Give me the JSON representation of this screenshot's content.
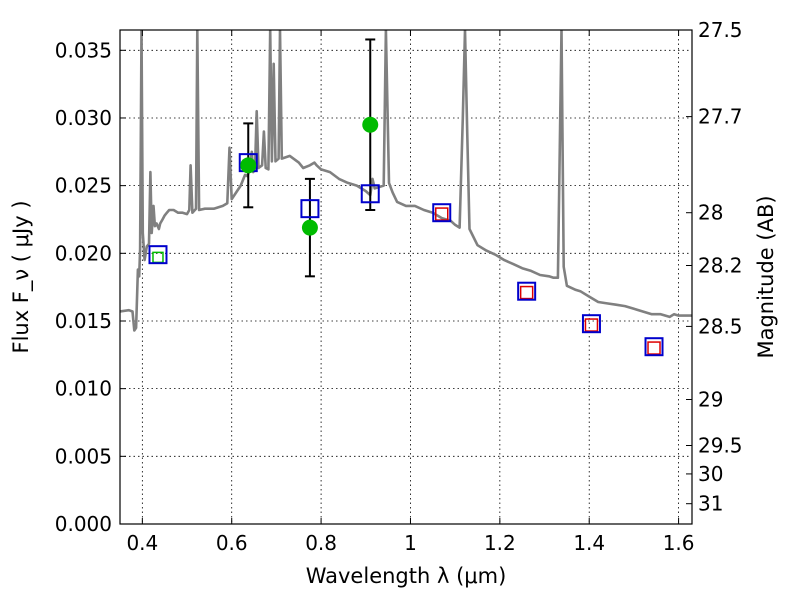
{
  "chart_data": {
    "type": "scatter",
    "xlabel": "Wavelength  λ (μm)",
    "ylabel": "Flux  F_ν  ( μJy )",
    "ylabel_right": "Magnitude (AB)",
    "xlim": [
      0.35,
      1.63
    ],
    "ylim": [
      0.0,
      0.0365
    ],
    "grid": true,
    "x_ticks": [
      0.4,
      0.6,
      0.8,
      1.0,
      1.2,
      1.4,
      1.6
    ],
    "x_tick_labels": [
      "0.4",
      "0.6",
      "0.8",
      "1",
      "1.2",
      "1.4",
      "1.6"
    ],
    "y_ticks": [
      0.0,
      0.005,
      0.01,
      0.015,
      0.02,
      0.025,
      0.03,
      0.035
    ],
    "y_tick_labels": [
      "0.000",
      "0.005",
      "0.010",
      "0.015",
      "0.020",
      "0.025",
      "0.030",
      "0.035"
    ],
    "right_ticks": [
      {
        "flux": 0.0365,
        "label": "27.5"
      },
      {
        "flux": 0.0301,
        "label": "27.7"
      },
      {
        "flux": 0.023,
        "label": "28"
      },
      {
        "flux": 0.0191,
        "label": "28.2"
      },
      {
        "flux": 0.0146,
        "label": "28.5"
      },
      {
        "flux": 0.0092,
        "label": "29"
      },
      {
        "flux": 0.0058,
        "label": "29.5"
      },
      {
        "flux": 0.0037,
        "label": "30"
      },
      {
        "flux": 0.0015,
        "label": "31"
      }
    ],
    "model_spectrum": {
      "color": "#808080",
      "points": [
        [
          0.35,
          0.0157
        ],
        [
          0.37,
          0.0158
        ],
        [
          0.378,
          0.0157
        ],
        [
          0.382,
          0.0143
        ],
        [
          0.386,
          0.0145
        ],
        [
          0.39,
          0.0188
        ],
        [
          0.393,
          0.0183
        ],
        [
          0.395,
          0.0203
        ],
        [
          0.398,
          0.0365
        ],
        [
          0.401,
          0.0215
        ],
        [
          0.405,
          0.0195
        ],
        [
          0.41,
          0.0205
        ],
        [
          0.415,
          0.0207
        ],
        [
          0.418,
          0.026
        ],
        [
          0.421,
          0.0215
        ],
        [
          0.425,
          0.0235
        ],
        [
          0.428,
          0.022
        ],
        [
          0.432,
          0.0222
        ],
        [
          0.437,
          0.0218
        ],
        [
          0.44,
          0.0222
        ],
        [
          0.445,
          0.0225
        ],
        [
          0.45,
          0.0228
        ],
        [
          0.455,
          0.023
        ],
        [
          0.46,
          0.0232
        ],
        [
          0.47,
          0.0232
        ],
        [
          0.48,
          0.023
        ],
        [
          0.49,
          0.023
        ],
        [
          0.5,
          0.0229
        ],
        [
          0.505,
          0.0232
        ],
        [
          0.508,
          0.0265
        ],
        [
          0.512,
          0.023
        ],
        [
          0.52,
          0.0233
        ],
        [
          0.523,
          0.0365
        ],
        [
          0.527,
          0.0232
        ],
        [
          0.54,
          0.0233
        ],
        [
          0.56,
          0.0233
        ],
        [
          0.58,
          0.0235
        ],
        [
          0.59,
          0.0237
        ],
        [
          0.595,
          0.0278
        ],
        [
          0.6,
          0.024
        ],
        [
          0.61,
          0.0245
        ],
        [
          0.62,
          0.025
        ],
        [
          0.63,
          0.0258
        ],
        [
          0.635,
          0.0257
        ],
        [
          0.64,
          0.0262
        ],
        [
          0.645,
          0.0275
        ],
        [
          0.648,
          0.026
        ],
        [
          0.652,
          0.0262
        ],
        [
          0.656,
          0.0305
        ],
        [
          0.66,
          0.0263
        ],
        [
          0.668,
          0.0265
        ],
        [
          0.672,
          0.029
        ],
        [
          0.676,
          0.0263
        ],
        [
          0.682,
          0.0262
        ],
        [
          0.686,
          0.0365
        ],
        [
          0.69,
          0.0268
        ],
        [
          0.694,
          0.034
        ],
        [
          0.698,
          0.0268
        ],
        [
          0.705,
          0.027
        ],
        [
          0.708,
          0.0365
        ],
        [
          0.712,
          0.027
        ],
        [
          0.73,
          0.0272
        ],
        [
          0.75,
          0.0267
        ],
        [
          0.76,
          0.0263
        ],
        [
          0.775,
          0.0265
        ],
        [
          0.785,
          0.0267
        ],
        [
          0.79,
          0.0265
        ],
        [
          0.8,
          0.0262
        ],
        [
          0.82,
          0.026
        ],
        [
          0.84,
          0.0255
        ],
        [
          0.86,
          0.0252
        ],
        [
          0.88,
          0.025
        ],
        [
          0.9,
          0.0246
        ],
        [
          0.91,
          0.0243
        ],
        [
          0.915,
          0.0255
        ],
        [
          0.92,
          0.0248
        ],
        [
          0.93,
          0.0249
        ],
        [
          0.94,
          0.025
        ],
        [
          0.945,
          0.0365
        ],
        [
          0.952,
          0.0252
        ],
        [
          0.96,
          0.0245
        ],
        [
          0.97,
          0.0238
        ],
        [
          0.99,
          0.0235
        ],
        [
          1.01,
          0.0235
        ],
        [
          1.03,
          0.0232
        ],
        [
          1.05,
          0.023
        ],
        [
          1.07,
          0.0226
        ],
        [
          1.09,
          0.0224
        ],
        [
          1.1,
          0.0221
        ],
        [
          1.11,
          0.0219
        ],
        [
          1.117,
          0.03
        ],
        [
          1.122,
          0.0365
        ],
        [
          1.127,
          0.029
        ],
        [
          1.132,
          0.0218
        ],
        [
          1.15,
          0.0206
        ],
        [
          1.17,
          0.0202
        ],
        [
          1.19,
          0.0199
        ],
        [
          1.21,
          0.0195
        ],
        [
          1.23,
          0.0192
        ],
        [
          1.25,
          0.0189
        ],
        [
          1.27,
          0.0187
        ],
        [
          1.29,
          0.0184
        ],
        [
          1.31,
          0.0183
        ],
        [
          1.32,
          0.0182
        ],
        [
          1.33,
          0.0182
        ],
        [
          1.338,
          0.0365
        ],
        [
          1.343,
          0.019
        ],
        [
          1.35,
          0.0176
        ],
        [
          1.37,
          0.0173
        ],
        [
          1.38,
          0.0172
        ],
        [
          1.4,
          0.0168
        ],
        [
          1.42,
          0.0164
        ],
        [
          1.44,
          0.0163
        ],
        [
          1.46,
          0.0162
        ],
        [
          1.48,
          0.0161
        ],
        [
          1.5,
          0.0159
        ],
        [
          1.52,
          0.0157
        ],
        [
          1.54,
          0.0155
        ],
        [
          1.56,
          0.0155
        ],
        [
          1.58,
          0.0153
        ],
        [
          1.59,
          0.0155
        ],
        [
          1.6,
          0.0154
        ],
        [
          1.63,
          0.0154
        ]
      ]
    },
    "observed": {
      "color": "#00bb00",
      "points": [
        {
          "x": 0.637,
          "y": 0.0265,
          "err": 0.0031
        },
        {
          "x": 0.775,
          "y": 0.0219,
          "err": 0.0036
        },
        {
          "x": 0.91,
          "y": 0.0295,
          "err": 0.0063
        }
      ]
    },
    "model_blue": {
      "color": "#0000cc",
      "points": [
        {
          "x": 0.435,
          "y": 0.0199
        },
        {
          "x": 0.637,
          "y": 0.0267
        },
        {
          "x": 0.775,
          "y": 0.0233
        },
        {
          "x": 0.91,
          "y": 0.0244
        },
        {
          "x": 1.07,
          "y": 0.023
        },
        {
          "x": 1.26,
          "y": 0.0172
        },
        {
          "x": 1.405,
          "y": 0.0148
        },
        {
          "x": 1.545,
          "y": 0.0131
        }
      ]
    },
    "model_red": {
      "color": "#dd0000",
      "points": [
        {
          "x": 1.07,
          "y": 0.0229
        },
        {
          "x": 1.26,
          "y": 0.0171
        },
        {
          "x": 1.405,
          "y": 0.0147
        },
        {
          "x": 1.545,
          "y": 0.013
        }
      ]
    },
    "model_green": {
      "color": "#00bb00",
      "points": [
        {
          "x": 0.435,
          "y": 0.0197
        }
      ]
    }
  }
}
